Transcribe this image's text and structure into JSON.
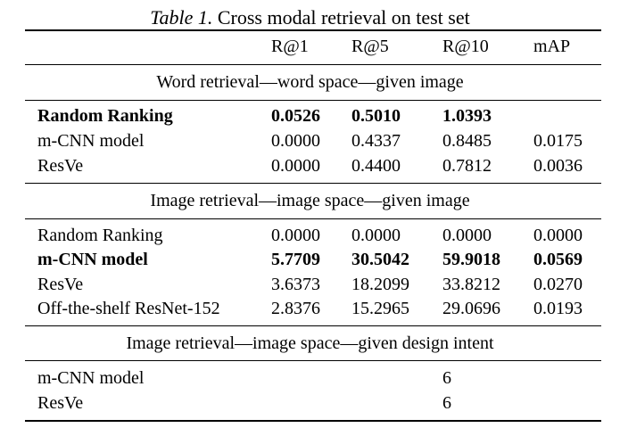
{
  "caption": {
    "label": "Table 1.",
    "text": "Cross modal retrieval on test set"
  },
  "header": [
    "",
    "R@1",
    "R@5",
    "R@10",
    "mAP"
  ],
  "sections": [
    {
      "title": "Word retrieval—word space—given image",
      "rows": [
        {
          "name": "Random Ranking",
          "r1": "0.0526",
          "r5": "0.5010",
          "r10": "1.0393",
          "map": "",
          "bold": true
        },
        {
          "name": "m-CNN model",
          "r1": "0.0000",
          "r5": "0.4337",
          "r10": "0.8485",
          "map": "0.0175",
          "bold": false
        },
        {
          "name": "ResVe",
          "r1": "0.0000",
          "r5": "0.4400",
          "r10": "0.7812",
          "map": "0.0036",
          "bold": false
        }
      ]
    },
    {
      "title": "Image retrieval—image space—given image",
      "rows": [
        {
          "name": "Random Ranking",
          "r1": "0.0000",
          "r5": "0.0000",
          "r10": "0.0000",
          "map": "0.0000",
          "bold": false
        },
        {
          "name": "m-CNN model",
          "r1": "5.7709",
          "r5": "30.5042",
          "r10": "59.9018",
          "map": "0.0569",
          "bold": true
        },
        {
          "name": "ResVe",
          "r1": "3.6373",
          "r5": "18.2099",
          "r10": "33.8212",
          "map": "0.0270",
          "bold": false
        },
        {
          "name": "Off-the-shelf ResNet-152",
          "r1": "2.8376",
          "r5": "15.2965",
          "r10": "29.0696",
          "map": "0.0193",
          "bold": false
        }
      ]
    },
    {
      "title": "Image retrieval—image space—given design intent",
      "rows": [
        {
          "name": "m-CNN model",
          "r1": "",
          "r5": "",
          "r10": "6",
          "map": "",
          "bold": false
        },
        {
          "name": "ResVe",
          "r1": "",
          "r5": "",
          "r10": "6",
          "map": "",
          "bold": false
        }
      ]
    }
  ]
}
